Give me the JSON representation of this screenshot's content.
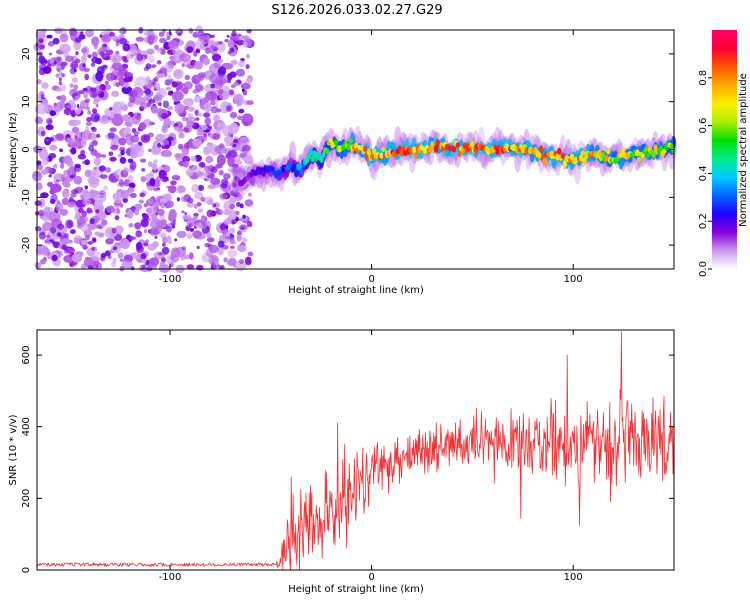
{
  "title": "S126.2026.033.02.27.G29",
  "chart_data": [
    {
      "type": "heatmap",
      "title": "S126.2026.033.02.27.G29",
      "xlabel": "Height of straight line (km)",
      "ylabel": "Frequency (Hz)",
      "xlim": [
        -166,
        150
      ],
      "ylim": [
        -25,
        25
      ],
      "xticks": [
        {
          "v": -100,
          "label": "-100"
        },
        {
          "v": 0,
          "label": "0"
        },
        {
          "v": 100,
          "label": "100"
        }
      ],
      "yticks": [
        {
          "v": -20,
          "label": "-20"
        },
        {
          "v": -10,
          "label": "-10"
        },
        {
          "v": 0,
          "label": "0"
        },
        {
          "v": 10,
          "label": "10"
        },
        {
          "v": 20,
          "label": "20"
        }
      ],
      "noise_region_x": [
        -166,
        -60
      ],
      "signal_track": {
        "x": [
          -65,
          -58,
          -50,
          -45,
          -40,
          -35,
          -30,
          -25,
          -22,
          -18,
          -14,
          -10,
          -5,
          0,
          5,
          10,
          20,
          30,
          40,
          50,
          60,
          70,
          80,
          90,
          100,
          110,
          120,
          125,
          130,
          140,
          150
        ],
        "freq": [
          -7,
          -5,
          -4,
          -5,
          -3,
          -4,
          -1,
          -2,
          0.5,
          1,
          0,
          1,
          0,
          -1.5,
          -1,
          -0.5,
          0,
          0.5,
          0,
          0.5,
          0,
          0.5,
          -0.5,
          -1.5,
          -2,
          -1,
          -2,
          -1.5,
          -1,
          -0.5,
          0.5
        ],
        "amp": [
          0.15,
          0.2,
          0.25,
          0.3,
          0.3,
          0.35,
          0.45,
          0.5,
          0.6,
          0.7,
          0.65,
          0.75,
          0.8,
          0.8,
          0.85,
          0.85,
          0.9,
          0.85,
          0.9,
          0.85,
          0.9,
          0.85,
          0.8,
          0.85,
          0.8,
          0.8,
          0.7,
          0.75,
          0.7,
          0.7,
          0.65
        ]
      },
      "colorbar": {
        "label": "Normalized spectral amplitude",
        "range": [
          0,
          1
        ],
        "ticks": [
          {
            "v": 0.0,
            "label": "0.0"
          },
          {
            "v": 0.2,
            "label": "0.2"
          },
          {
            "v": 0.4,
            "label": "0.4"
          },
          {
            "v": 0.6,
            "label": "0.6"
          },
          {
            "v": 0.8,
            "label": "0.8"
          }
        ],
        "colormap": [
          "#ffffff",
          "#cc99ee",
          "#8800dd",
          "#2200ff",
          "#0066ff",
          "#00ccff",
          "#00ee88",
          "#00dd00",
          "#aaee00",
          "#ffee00",
          "#ffaa00",
          "#ff5500",
          "#ff0033",
          "#ff0066"
        ]
      }
    },
    {
      "type": "line",
      "xlabel": "Height of straight line (km)",
      "ylabel": "SNR (10 * v/v)",
      "xlim": [
        -166,
        150
      ],
      "ylim": [
        0,
        670
      ],
      "color": "#ee3333",
      "xticks": [
        {
          "v": -100,
          "label": "-100"
        },
        {
          "v": 0,
          "label": "0"
        },
        {
          "v": 100,
          "label": "100"
        }
      ],
      "yticks": [
        {
          "v": 0,
          "label": "0"
        },
        {
          "v": 200,
          "label": "200"
        },
        {
          "v": 400,
          "label": "400"
        },
        {
          "v": 600,
          "label": "600"
        }
      ],
      "trend": {
        "x": [
          -166,
          -60,
          -48,
          -45,
          -40,
          -35,
          -30,
          -25,
          -20,
          -15,
          -10,
          0,
          10,
          20,
          30,
          40,
          60,
          80,
          100,
          120,
          150
        ],
        "mean": [
          15,
          15,
          15,
          30,
          80,
          120,
          130,
          120,
          150,
          180,
          220,
          270,
          310,
          330,
          340,
          345,
          350,
          355,
          355,
          360,
          365
        ],
        "noise": [
          4,
          4,
          4,
          30,
          60,
          70,
          70,
          70,
          70,
          60,
          60,
          50,
          45,
          40,
          40,
          40,
          45,
          50,
          60,
          65,
          60
        ]
      },
      "peaks": [
        {
          "x": -40,
          "y": 260
        },
        {
          "x": -17,
          "y": 410
        },
        {
          "x": 97,
          "y": 600
        },
        {
          "x": 124,
          "y": 665
        },
        {
          "x": 103,
          "y": 125
        }
      ]
    }
  ]
}
